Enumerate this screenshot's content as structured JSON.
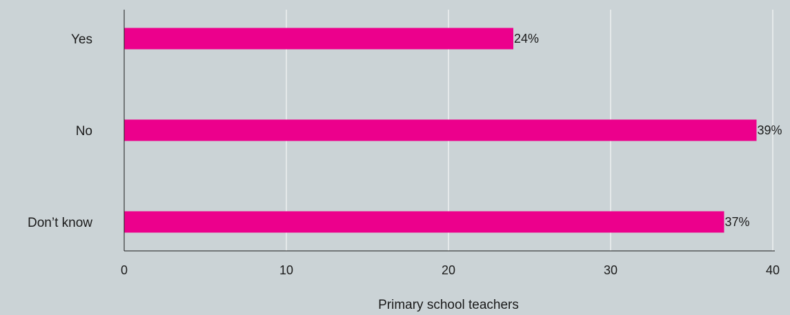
{
  "chart_data": {
    "type": "bar",
    "orientation": "horizontal",
    "categories": [
      "Yes",
      "No",
      "Don’t know"
    ],
    "values": [
      24,
      39,
      37
    ],
    "value_labels": [
      "24%",
      "39%",
      "37%"
    ],
    "xlabel": "Primary school teachers",
    "ylabel": "",
    "xlim": [
      0,
      40
    ],
    "xticks": [
      0,
      10,
      20,
      30,
      40
    ],
    "grid": true,
    "colors": {
      "bar": "#ec008c",
      "background": "#cbd3d6",
      "grid": "#ffffff",
      "axis": "#1a1a1a"
    }
  }
}
